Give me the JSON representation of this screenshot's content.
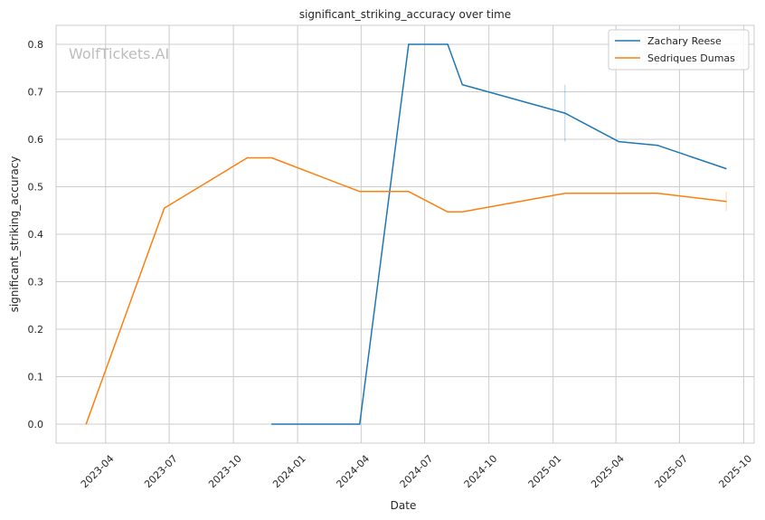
{
  "chart_data": {
    "type": "line",
    "title": "significant_striking_accuracy over time",
    "xlabel": "Date",
    "ylabel": "significant_striking_accuracy",
    "watermark": "WolfTickets.AI",
    "xlim": [
      "2023-01-20",
      "2025-10-16"
    ],
    "ylim": [
      -0.04,
      0.84
    ],
    "x_ticks": [
      "2023-04-01",
      "2023-07-01",
      "2023-10-01",
      "2024-01-01",
      "2024-04-01",
      "2024-07-01",
      "2024-10-01",
      "2025-01-01",
      "2025-04-01",
      "2025-07-01",
      "2025-10-01"
    ],
    "x_tick_labels": [
      "2023-04",
      "2023-07",
      "2023-10",
      "2024-01",
      "2024-04",
      "2024-07",
      "2024-10",
      "2025-01",
      "2025-04",
      "2025-07",
      "2025-10"
    ],
    "y_ticks": [
      0.0,
      0.1,
      0.2,
      0.3,
      0.4,
      0.5,
      0.6,
      0.7,
      0.8
    ],
    "y_tick_labels": [
      "0.0",
      "0.1",
      "0.2",
      "0.3",
      "0.4",
      "0.5",
      "0.6",
      "0.7",
      "0.8"
    ],
    "grid": true,
    "legend_position": "top-right",
    "series": [
      {
        "name": "Zachary Reese",
        "color": "#1f77b4",
        "x": [
          "2023-11-25",
          "2024-03-30",
          "2024-06-08",
          "2024-08-03",
          "2024-08-24",
          "2025-01-18",
          "2025-04-05",
          "2025-05-31",
          "2025-09-06"
        ],
        "y": [
          0.0,
          0.0,
          0.8,
          0.8,
          0.715,
          0.655,
          0.595,
          0.587,
          0.538
        ],
        "error_bar": {
          "x": "2025-01-18",
          "low": 0.595,
          "high": 0.715
        }
      },
      {
        "name": "Sedriques Dumas",
        "color": "#ff7f0e",
        "x": [
          "2023-03-04",
          "2023-06-24",
          "2023-10-21",
          "2023-11-25",
          "2024-03-30",
          "2024-06-08",
          "2024-08-03",
          "2024-08-24",
          "2025-01-18",
          "2025-04-05",
          "2025-05-31",
          "2025-09-06"
        ],
        "y": [
          0.0,
          0.455,
          0.561,
          0.561,
          0.49,
          0.49,
          0.447,
          0.447,
          0.486,
          0.486,
          0.486,
          0.469
        ],
        "error_bar": {
          "x": "2025-09-06",
          "low": 0.449,
          "high": 0.489
        }
      }
    ]
  }
}
